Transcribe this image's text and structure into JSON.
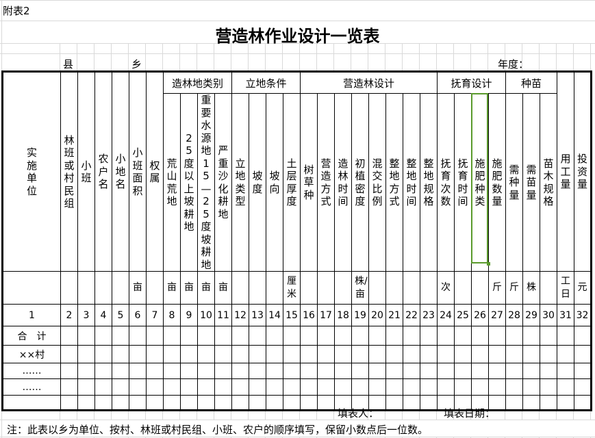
{
  "sheet_label": "附表2",
  "title": "营造林作业设计一览表",
  "county_label": "县",
  "town_label": "乡",
  "year_label": "年度：",
  "groups": [
    {
      "label": "造林地类别",
      "start": 8,
      "span": 4
    },
    {
      "label": "立地条件",
      "start": 12,
      "span": 4
    },
    {
      "label": "营造林设计",
      "start": 16,
      "span": 8
    },
    {
      "label": "抚育设计",
      "start": 24,
      "span": 4
    },
    {
      "label": "种苗",
      "start": 28,
      "span": 3
    }
  ],
  "columns": [
    {
      "label": "实施单位",
      "unit": "",
      "number": "1"
    },
    {
      "label": "林班或村民组",
      "unit": "",
      "number": "2"
    },
    {
      "label": "小班",
      "unit": "",
      "number": "3"
    },
    {
      "label": "农户名",
      "unit": "",
      "number": "4"
    },
    {
      "label": "小地名",
      "unit": "",
      "number": "5"
    },
    {
      "label": "小班面积",
      "unit": "亩",
      "number": "6"
    },
    {
      "label": "权属",
      "unit": "",
      "number": "7"
    },
    {
      "label": "荒山荒地",
      "unit": "亩",
      "number": "8"
    },
    {
      "label": "25度以上坡耕地",
      "unit": "亩",
      "number": "9"
    },
    {
      "label": "重要水源地15—25度坡耕地",
      "unit": "亩",
      "number": "10"
    },
    {
      "label": "严重沙化耕地",
      "unit": "亩",
      "number": "11"
    },
    {
      "label": "立地类型",
      "unit": "",
      "number": "12"
    },
    {
      "label": "坡度",
      "unit": "",
      "number": "13"
    },
    {
      "label": "坡向",
      "unit": "",
      "number": "14"
    },
    {
      "label": "土层厚度",
      "unit": "厘米",
      "number": "15"
    },
    {
      "label": "树草种",
      "unit": "",
      "number": "16"
    },
    {
      "label": "营造方式",
      "unit": "",
      "number": "17"
    },
    {
      "label": "造林时间",
      "unit": "",
      "number": "18"
    },
    {
      "label": "初植密度",
      "unit": "株/亩",
      "number": "19"
    },
    {
      "label": "混交比例",
      "unit": "",
      "number": "20"
    },
    {
      "label": "整地方式",
      "unit": "",
      "number": "21"
    },
    {
      "label": "整地时间",
      "unit": "",
      "number": "22"
    },
    {
      "label": "整地规格",
      "unit": "",
      "number": "23"
    },
    {
      "label": "抚育次数",
      "unit": "次",
      "number": "24"
    },
    {
      "label": "抚育时间",
      "unit": "",
      "number": "25"
    },
    {
      "label": "施肥种类",
      "unit": "",
      "number": "26"
    },
    {
      "label": "施肥数量",
      "unit": "斤",
      "number": "27"
    },
    {
      "label": "需种量",
      "unit": "斤",
      "number": "28"
    },
    {
      "label": "需苗量",
      "unit": "株",
      "number": "29"
    },
    {
      "label": "苗木规格",
      "unit": "",
      "number": "30"
    },
    {
      "label": "用工量",
      "unit": "工日",
      "number": "31"
    },
    {
      "label": "投资量",
      "unit": "元",
      "number": "32"
    }
  ],
  "rows": [
    "合　计",
    "××村",
    "……",
    "……",
    ""
  ],
  "selected_column": 26,
  "selection_color": "#5a9a2c",
  "footer": {
    "filler_label": "填表人：",
    "date_label": "填表日期：",
    "note": "注：此表以乡为单位、按村、林班或村民组、小班、农户的顺序填写，保留小数点后一位数。"
  }
}
